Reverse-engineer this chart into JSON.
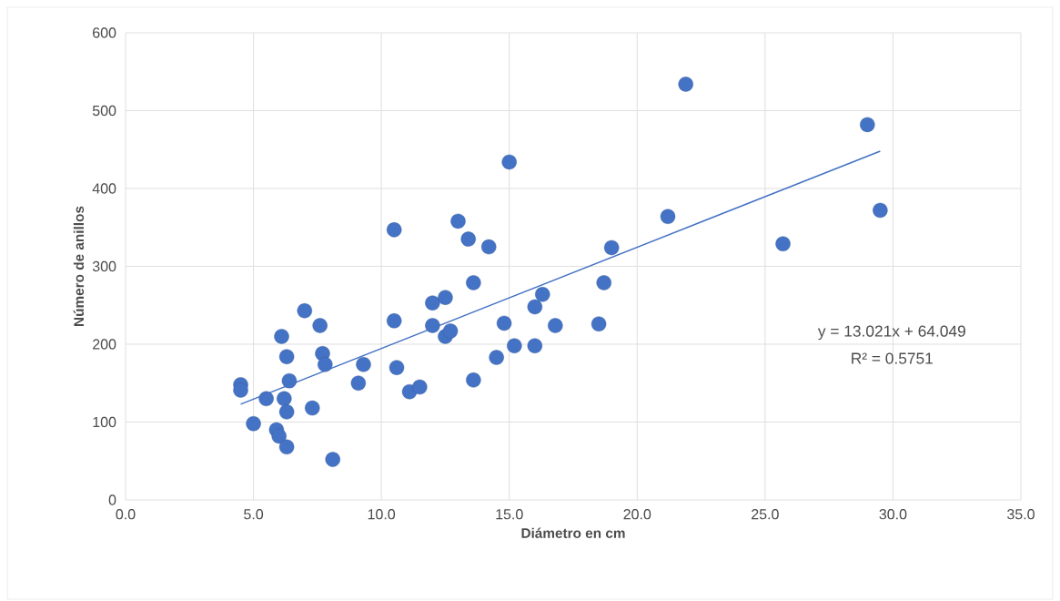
{
  "chart_data": {
    "type": "scatter",
    "xlabel": "Diámetro en cm",
    "ylabel": "Número de anillos",
    "xlim": [
      0,
      35
    ],
    "ylim": [
      0,
      600
    ],
    "xticks": [
      {
        "value": 0,
        "label": "0.0"
      },
      {
        "value": 5,
        "label": "5.0"
      },
      {
        "value": 10,
        "label": "10.0"
      },
      {
        "value": 15,
        "label": "15.0"
      },
      {
        "value": 20,
        "label": "20.0"
      },
      {
        "value": 25,
        "label": "25.0"
      },
      {
        "value": 30,
        "label": "30.0"
      },
      {
        "value": 35,
        "label": "35.0"
      }
    ],
    "yticks": [
      0,
      100,
      200,
      300,
      400,
      500,
      600
    ],
    "grid": true,
    "series": [
      {
        "marker": "circle",
        "color": "#4472c4",
        "x": [
          4.5,
          4.5,
          5.0,
          5.5,
          5.9,
          6.0,
          6.1,
          6.2,
          6.3,
          6.3,
          6.3,
          6.4,
          7.0,
          7.3,
          7.6,
          7.7,
          7.8,
          8.1,
          9.1,
          9.3,
          10.5,
          10.5,
          10.6,
          11.1,
          11.5,
          12.0,
          12.0,
          12.5,
          12.5,
          12.7,
          13.0,
          13.4,
          13.6,
          13.6,
          14.2,
          14.5,
          14.8,
          15.0,
          15.2,
          16.0,
          16.0,
          16.3,
          16.8,
          18.5,
          18.7,
          19.0,
          21.2,
          21.9,
          25.7,
          29.0,
          29.5
        ],
        "values": [
          148,
          141,
          98,
          130,
          90,
          82,
          210,
          130,
          184,
          113,
          68,
          153,
          243,
          118,
          224,
          188,
          174,
          52,
          150,
          174,
          347,
          230,
          170,
          139,
          145,
          253,
          224,
          260,
          210,
          217,
          358,
          335,
          279,
          154,
          325,
          183,
          227,
          434,
          198,
          248,
          198,
          264,
          224,
          226,
          279,
          324,
          364,
          534,
          329,
          482,
          372
        ]
      },
      {
        "type": "line",
        "marker": "none",
        "color": "#4472c4",
        "x": [
          4.5,
          29.5
        ],
        "values": [
          123,
          448
        ]
      }
    ],
    "annotations": [
      "y = 13.021x + 64.049",
      "R² = 0.5751"
    ]
  }
}
